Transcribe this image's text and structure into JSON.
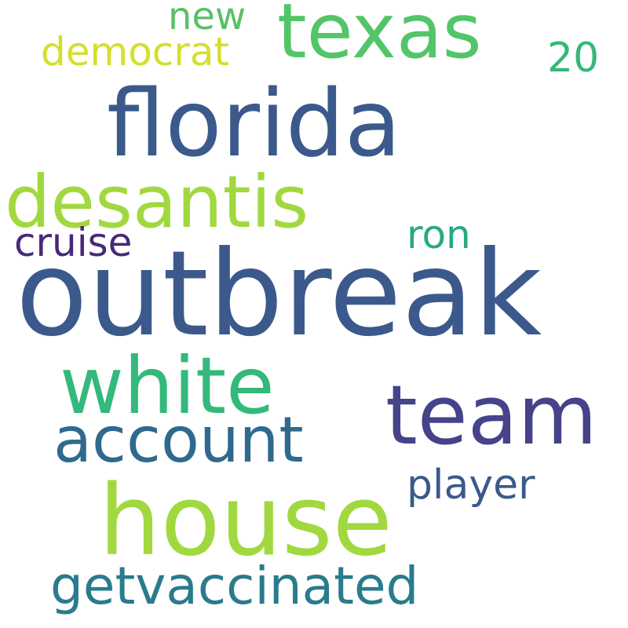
{
  "background": "#ffffff",
  "words": [
    {
      "text": "outbreak",
      "color": "#3b5a8b"
    },
    {
      "text": "florida",
      "color": "#3b5a8b"
    },
    {
      "text": "house",
      "color": "#a2d83f"
    },
    {
      "text": "team",
      "color": "#46438a"
    },
    {
      "text": "white",
      "color": "#33b97b"
    },
    {
      "text": "texas",
      "color": "#53c569"
    },
    {
      "text": "desantis",
      "color": "#a2d83f"
    },
    {
      "text": "account",
      "color": "#2f6a8e"
    },
    {
      "text": "getvaccinated",
      "color": "#2a7b8c"
    },
    {
      "text": "player",
      "color": "#3b5a8b"
    },
    {
      "text": "democrat",
      "color": "#d4df2a"
    },
    {
      "text": "20",
      "color": "#36b877"
    },
    {
      "text": "ron",
      "color": "#27a984"
    },
    {
      "text": "cruise",
      "color": "#482878"
    },
    {
      "text": "new",
      "color": "#57c165"
    }
  ]
}
